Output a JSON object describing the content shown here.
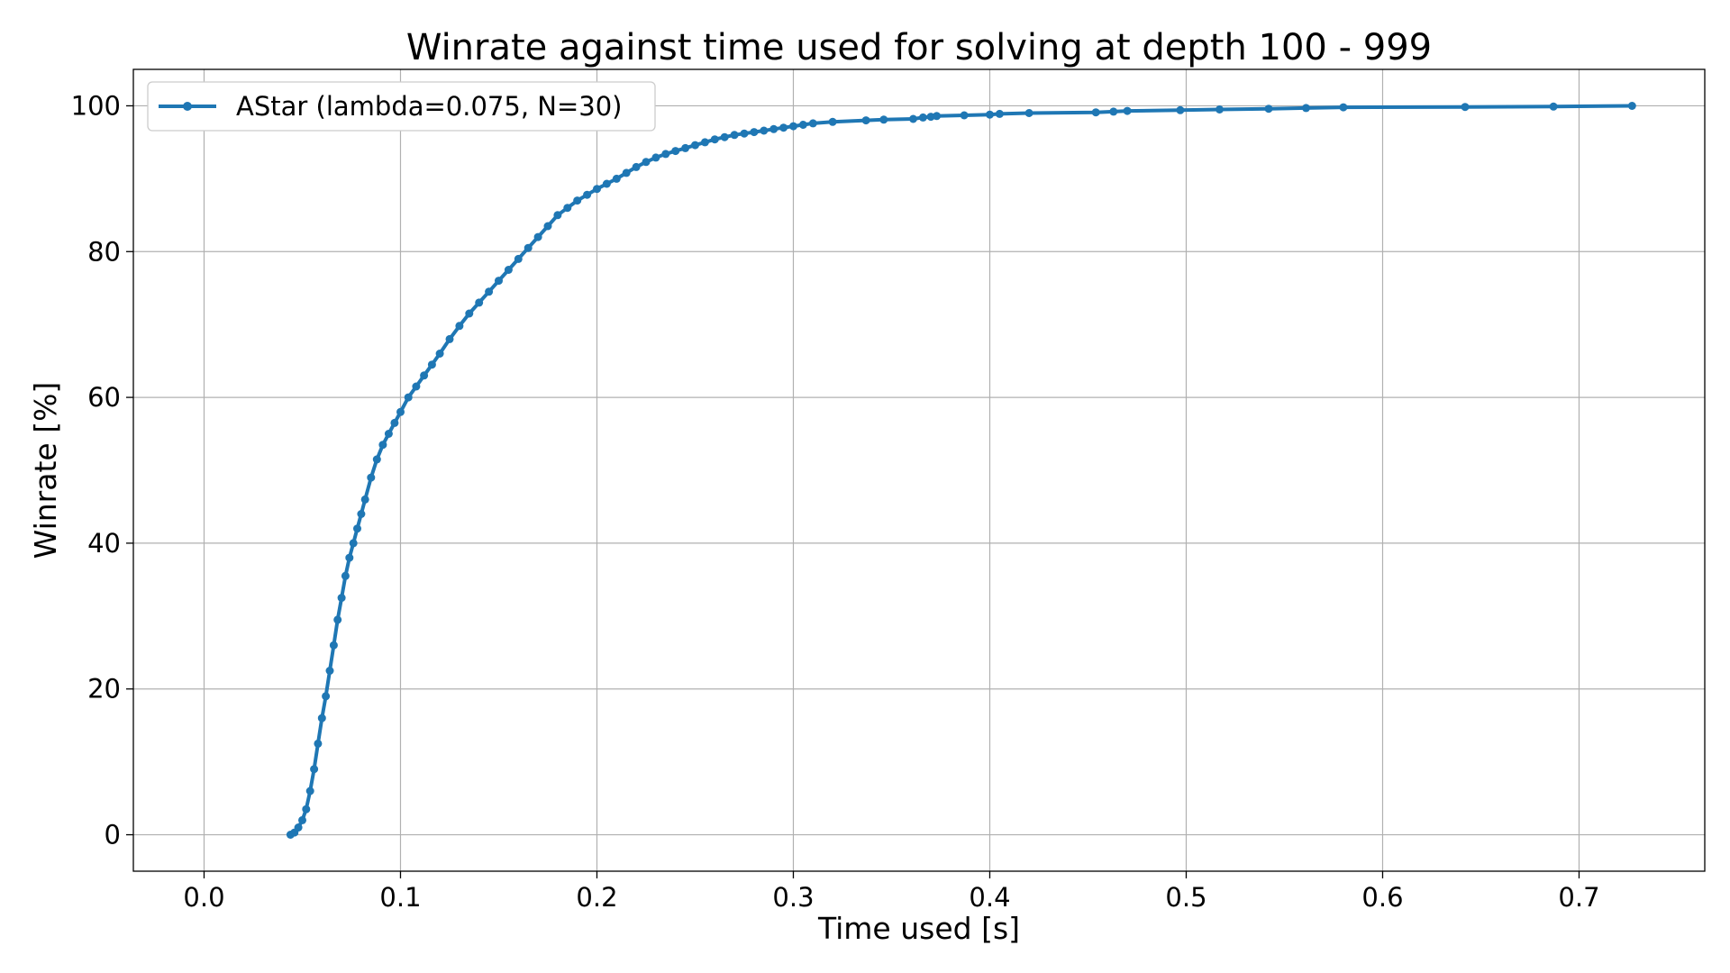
{
  "chart_data": {
    "type": "line",
    "title": "Winrate against time used for solving at depth 100 - 999",
    "xlabel": "Time used [s]",
    "ylabel": "Winrate [%]",
    "xlim": [
      -0.036,
      0.764
    ],
    "ylim": [
      -5,
      105
    ],
    "xticks": [
      0.0,
      0.1,
      0.2,
      0.3,
      0.4,
      0.5,
      0.6,
      0.7
    ],
    "xtick_labels": [
      "0.0",
      "0.1",
      "0.2",
      "0.3",
      "0.4",
      "0.5",
      "0.6",
      "0.7"
    ],
    "yticks": [
      0,
      20,
      40,
      60,
      80,
      100
    ],
    "ytick_labels": [
      "0",
      "20",
      "40",
      "60",
      "80",
      "100"
    ],
    "grid": true,
    "legend_position": "top-left",
    "color": "#1f77b4",
    "series": [
      {
        "name": "AStar (lambda=0.075, N=30)",
        "x": [
          0.044,
          0.046,
          0.048,
          0.05,
          0.052,
          0.054,
          0.056,
          0.058,
          0.06,
          0.062,
          0.064,
          0.066,
          0.068,
          0.07,
          0.072,
          0.074,
          0.076,
          0.078,
          0.08,
          0.082,
          0.085,
          0.088,
          0.091,
          0.094,
          0.097,
          0.1,
          0.104,
          0.108,
          0.112,
          0.116,
          0.12,
          0.125,
          0.13,
          0.135,
          0.14,
          0.145,
          0.15,
          0.155,
          0.16,
          0.165,
          0.17,
          0.175,
          0.18,
          0.185,
          0.19,
          0.195,
          0.2,
          0.205,
          0.21,
          0.215,
          0.22,
          0.225,
          0.23,
          0.235,
          0.24,
          0.245,
          0.25,
          0.255,
          0.26,
          0.265,
          0.27,
          0.275,
          0.28,
          0.285,
          0.29,
          0.295,
          0.3,
          0.305,
          0.31,
          0.32,
          0.337,
          0.346,
          0.361,
          0.366,
          0.37,
          0.373,
          0.387,
          0.4,
          0.405,
          0.42,
          0.454,
          0.463,
          0.47,
          0.497,
          0.517,
          0.542,
          0.561,
          0.58,
          0.642,
          0.687,
          0.727
        ],
        "values": [
          0.0,
          0.3,
          1.0,
          2.0,
          3.5,
          6.0,
          9.0,
          12.5,
          16.0,
          19.0,
          22.5,
          26.0,
          29.5,
          32.5,
          35.5,
          38.0,
          40.0,
          42.0,
          44.0,
          46.0,
          49.0,
          51.5,
          53.5,
          55.0,
          56.5,
          58.0,
          60.0,
          61.5,
          63.0,
          64.5,
          66.0,
          68.0,
          69.8,
          71.5,
          73.0,
          74.5,
          76.0,
          77.5,
          79.0,
          80.5,
          82.0,
          83.5,
          85.0,
          86.0,
          87.0,
          87.8,
          88.6,
          89.3,
          90.0,
          90.8,
          91.6,
          92.3,
          92.9,
          93.4,
          93.8,
          94.2,
          94.6,
          95.0,
          95.4,
          95.7,
          96.0,
          96.2,
          96.4,
          96.6,
          96.8,
          97.0,
          97.2,
          97.4,
          97.6,
          97.8,
          98.0,
          98.1,
          98.2,
          98.4,
          98.5,
          98.6,
          98.7,
          98.8,
          98.9,
          99.0,
          99.1,
          99.2,
          99.3,
          99.4,
          99.5,
          99.6,
          99.7,
          99.8,
          99.85,
          99.9,
          100.0
        ]
      }
    ]
  }
}
